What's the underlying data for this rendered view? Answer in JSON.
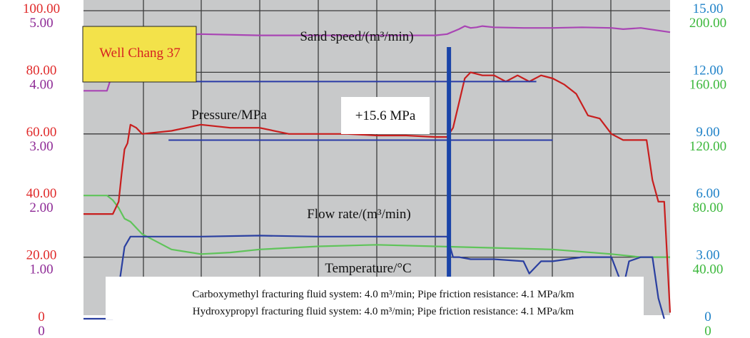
{
  "chart_data": {
    "type": "line",
    "x_range": [
      0,
      100
    ],
    "grid": true,
    "colors": {
      "plot_bg": "#c8c9ca",
      "grid": "#3c3c3c",
      "pressure": "#c81e1e",
      "sand": "#a945b4",
      "flow": "#2a3fa0",
      "temperature": "#5fc45a",
      "marker": "#1a44a8",
      "baseline": "#2a3aa6",
      "axis_pressure": "#e02a2a",
      "axis_sand": "#8e2a96",
      "axis_flow": "#1f82c8",
      "axis_temp": "#3cb83c",
      "tag_bg": "#f3e24a"
    },
    "axes": {
      "pressure": {
        "ticks": [
          "0",
          "20.00",
          "40.00",
          "60.00",
          "80.00",
          "100.00"
        ],
        "range": [
          0,
          100
        ]
      },
      "sand": {
        "ticks": [
          "0",
          "1.00",
          "2.00",
          "3.00",
          "4.00",
          "5.00"
        ],
        "range": [
          0,
          5
        ]
      },
      "flow": {
        "ticks": [
          "0",
          "3.00",
          "6.00",
          "9.00",
          "12.00",
          "15.00"
        ],
        "range": [
          0,
          15
        ]
      },
      "temperature": {
        "ticks": [
          "0",
          "40.00",
          "80.00",
          "120.00",
          "160.00",
          "200.00"
        ],
        "range": [
          0,
          200
        ]
      }
    },
    "labels": {
      "well": "Well Chang 37",
      "sand_speed": "Sand speed/(m³/min)",
      "pressure": "Pressure/MPa",
      "delta": "+15.6 MPa",
      "flow_rate": "Flow rate/(m³/min)",
      "temperature": "Temperature/°C"
    },
    "notes": [
      "Carboxymethyl fracturing fluid system: 4.0 m³/min; Pipe friction resistance: 4.1 MPa/km",
      "Hydroxypropyl fracturing fluid system: 4.0 m³/min; Pipe friction resistance: 4.1 MPa/km"
    ],
    "marker_x": 62.3,
    "reference_lines": [
      {
        "x": [
          15.8,
          77.2
        ],
        "value": 77.0
      },
      {
        "x": [
          14.5,
          80.0
        ],
        "value": 58.0
      }
    ],
    "series": [
      {
        "key": "pressure",
        "x": [
          0,
          3,
          5,
          6,
          6.5,
          7,
          7.5,
          8,
          9,
          10,
          15,
          20,
          25,
          30,
          35,
          40,
          45,
          50,
          55,
          60,
          62,
          63,
          64,
          65,
          66,
          68,
          70,
          72,
          74,
          76,
          78,
          80,
          82,
          84,
          86,
          88,
          90,
          92,
          96,
          97,
          98,
          99,
          100
        ],
        "y": [
          34,
          34,
          34,
          38,
          47,
          55,
          57,
          63,
          62,
          60,
          61,
          63,
          62,
          62,
          60,
          60,
          60,
          59.5,
          59.5,
          59,
          59,
          62,
          70,
          78,
          80,
          79,
          79,
          77,
          79,
          77,
          79,
          78,
          76,
          73,
          66,
          65,
          60,
          58,
          58,
          45,
          38,
          38,
          2
        ]
      },
      {
        "key": "sand",
        "x": [
          0,
          3,
          4,
          5,
          6,
          7,
          8,
          9,
          10,
          15,
          20,
          30,
          40,
          50,
          55,
          60,
          62,
          64,
          65,
          66,
          67,
          68,
          70,
          75,
          80,
          85,
          90,
          92,
          95,
          100
        ],
        "y": [
          3.7,
          3.7,
          3.7,
          4.0,
          4.4,
          4.6,
          4.6,
          4.55,
          4.6,
          4.6,
          4.62,
          4.6,
          4.6,
          4.6,
          4.6,
          4.6,
          4.62,
          4.7,
          4.75,
          4.72,
          4.73,
          4.75,
          4.73,
          4.72,
          4.72,
          4.73,
          4.72,
          4.7,
          4.72,
          4.65
        ]
      },
      {
        "key": "flow",
        "x": [
          0,
          5,
          6,
          7,
          8,
          10,
          20,
          30,
          40,
          50,
          60,
          62,
          63,
          64,
          66,
          70,
          75,
          76,
          77,
          78,
          80,
          85,
          90,
          92,
          93,
          95,
          97,
          98,
          99
        ],
        "y": [
          0,
          0,
          1.5,
          3.5,
          4.0,
          4.0,
          4.0,
          4.05,
          4.0,
          4.0,
          4.0,
          4.0,
          3.0,
          3.0,
          2.9,
          2.9,
          2.8,
          2.2,
          2.5,
          2.8,
          2.8,
          3.0,
          3.0,
          1.5,
          2.8,
          3.0,
          3.0,
          1.0,
          0
        ]
      },
      {
        "key": "temperature",
        "x": [
          0,
          2,
          4,
          5,
          6,
          7,
          8,
          10,
          15,
          20,
          25,
          30,
          40,
          50,
          60,
          70,
          80,
          90,
          95,
          98,
          100
        ],
        "y": [
          80,
          80,
          80,
          77,
          72,
          65,
          63,
          55,
          45,
          42,
          43,
          45,
          47,
          48,
          47,
          46,
          45,
          42,
          40,
          40,
          40
        ]
      }
    ]
  }
}
